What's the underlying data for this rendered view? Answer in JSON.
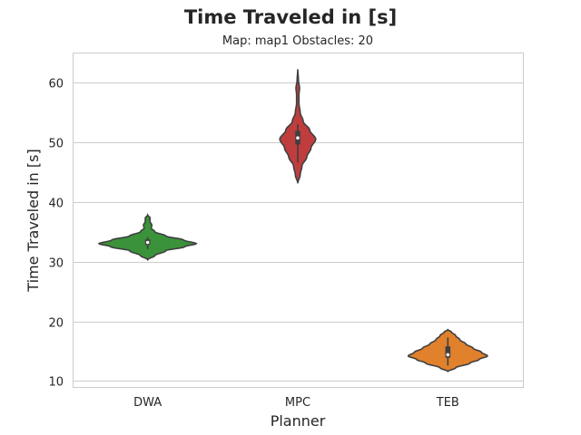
{
  "chart_data": {
    "type": "violin",
    "title": "Time Traveled in [s]",
    "subtitle": "Map: map1 Obstacles: 20",
    "xlabel": "Planner",
    "ylabel": "Time Traveled in [s]",
    "ylim": [
      9,
      65
    ],
    "yticks": [
      10,
      20,
      30,
      40,
      50,
      60
    ],
    "grid": "horizontal",
    "categories": [
      "DWA",
      "MPC",
      "TEB"
    ],
    "colors": [
      "#3a923a",
      "#c03d3e",
      "#e1812c"
    ],
    "violins": [
      {
        "name": "DWA",
        "min": 30.3,
        "max": 37.8,
        "q1": 32.8,
        "median": 33.2,
        "q3": 33.7,
        "whisker_low": 32.1,
        "whisker_high": 34.1,
        "profile": [
          [
            30.3,
            0.0
          ],
          [
            31.0,
            0.12
          ],
          [
            31.8,
            0.3
          ],
          [
            32.5,
            0.62
          ],
          [
            33.0,
            0.81
          ],
          [
            33.6,
            0.6
          ],
          [
            34.3,
            0.3
          ],
          [
            35.0,
            0.12
          ],
          [
            35.6,
            0.06
          ],
          [
            36.1,
            0.07
          ],
          [
            36.7,
            0.04
          ],
          [
            37.3,
            0.04
          ],
          [
            37.8,
            0.0
          ]
        ]
      },
      {
        "name": "MPC",
        "min": 43.1,
        "max": 62.2,
        "q1": 49.6,
        "median": 50.7,
        "q3": 51.9,
        "whisker_low": 46.6,
        "whisker_high": 53.0,
        "profile": [
          [
            43.1,
            0.0
          ],
          [
            44.5,
            0.04
          ],
          [
            46.0,
            0.07
          ],
          [
            47.5,
            0.15
          ],
          [
            49.0,
            0.22
          ],
          [
            50.5,
            0.3
          ],
          [
            52.0,
            0.2
          ],
          [
            53.5,
            0.09
          ],
          [
            55.0,
            0.04
          ],
          [
            56.5,
            0.02
          ],
          [
            58.0,
            0.02
          ],
          [
            59.0,
            0.03
          ],
          [
            60.5,
            0.01
          ],
          [
            62.2,
            0.0
          ]
        ]
      },
      {
        "name": "TEB",
        "min": 11.6,
        "max": 18.6,
        "q1": 13.9,
        "median": 14.4,
        "q3": 15.8,
        "whisker_low": 12.6,
        "whisker_high": 17.3,
        "profile": [
          [
            11.6,
            0.0
          ],
          [
            12.2,
            0.13
          ],
          [
            13.0,
            0.37
          ],
          [
            13.6,
            0.52
          ],
          [
            14.2,
            0.66
          ],
          [
            14.8,
            0.56
          ],
          [
            15.5,
            0.42
          ],
          [
            16.2,
            0.3
          ],
          [
            16.9,
            0.2
          ],
          [
            17.6,
            0.13
          ],
          [
            18.2,
            0.06
          ],
          [
            18.6,
            0.0
          ]
        ]
      }
    ]
  }
}
